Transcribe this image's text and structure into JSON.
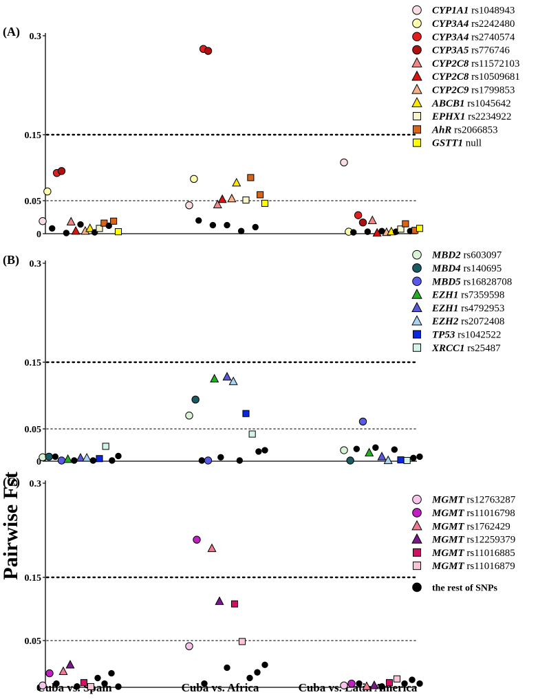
{
  "figure": {
    "y_axis_label": "Pairwise Fst",
    "x_categories": [
      "Cuba vs. Spain",
      "Cuba vs. Africa",
      "Cuba vs. Latin America"
    ]
  },
  "chart_data": [
    {
      "type": "scatter",
      "panel": "(A)",
      "ylim": [
        0,
        0.3
      ],
      "ytick_labels": [
        "0",
        "0.05",
        "0.15",
        "0.3"
      ],
      "reference_lines": [
        0.05,
        0.15
      ],
      "categories": [
        "Cuba vs. Spain",
        "Cuba vs. Africa",
        "Cuba vs. Latin America"
      ],
      "series": [
        {
          "gene": "CYP1A1",
          "snp": "rs1048943",
          "marker": "circle",
          "color": "#f9dde2",
          "points": [
            {
              "x": 0,
              "y": 0.019
            },
            {
              "x": 1,
              "y": 0.043
            },
            {
              "x": 2,
              "y": 0.108
            }
          ]
        },
        {
          "gene": "CYP3A4",
          "snp": "rs2242480",
          "marker": "circle",
          "color": "#ffffb0",
          "points": [
            {
              "x": 0,
              "y": 0.064
            },
            {
              "x": 1,
              "y": 0.083
            },
            {
              "x": 2,
              "y": 0.003
            }
          ]
        },
        {
          "gene": "CYP3A4",
          "snp": "rs2740574",
          "marker": "circle",
          "color": "#e01f1f",
          "points": [
            {
              "x": 0,
              "y": 0.092
            },
            {
              "x": 1,
              "y": 0.28
            },
            {
              "x": 2,
              "y": 0.028
            }
          ]
        },
        {
          "gene": "CYP3A5",
          "snp": "rs776746",
          "marker": "circle",
          "color": "#b01010",
          "points": [
            {
              "x": 0,
              "y": 0.095
            },
            {
              "x": 1,
              "y": 0.277
            },
            {
              "x": 2,
              "y": 0.017
            }
          ]
        },
        {
          "gene": "CYP2C8",
          "snp": "rs11572103",
          "marker": "triangle",
          "color": "#f08888",
          "points": [
            {
              "x": 0,
              "y": 0.018
            },
            {
              "x": 1,
              "y": 0.044
            },
            {
              "x": 2,
              "y": 0.02
            }
          ]
        },
        {
          "gene": "CYP2C8",
          "snp": "rs10509681",
          "marker": "triangle",
          "color": "#e01010",
          "points": [
            {
              "x": 0,
              "y": 0.004
            },
            {
              "x": 1,
              "y": 0.052
            },
            {
              "x": 2,
              "y": 0.001
            }
          ]
        },
        {
          "gene": "CYP2C9",
          "snp": "rs1799853",
          "marker": "triangle",
          "color": "#f6b28c",
          "points": [
            {
              "x": 0,
              "y": 0.004
            },
            {
              "x": 1,
              "y": 0.053
            },
            {
              "x": 2,
              "y": 0.002
            }
          ]
        },
        {
          "gene": "ABCB1",
          "snp": "rs1045642",
          "marker": "triangle",
          "color": "#ffe800",
          "points": [
            {
              "x": 0,
              "y": 0.008
            },
            {
              "x": 1,
              "y": 0.077
            },
            {
              "x": 2,
              "y": 0.003
            }
          ]
        },
        {
          "gene": "EPHX1",
          "snp": "rs2234922",
          "marker": "square",
          "color": "#f8f4cc",
          "points": [
            {
              "x": 0,
              "y": 0.008
            },
            {
              "x": 1,
              "y": 0.051
            },
            {
              "x": 2,
              "y": 0.007
            }
          ]
        },
        {
          "gene": "AhR",
          "snp": "rs2066853",
          "marker": "square",
          "color": "#d86418",
          "points": [
            {
              "x": 0,
              "y": 0.016
            },
            {
              "x": 0,
              "y": 0.019
            },
            {
              "x": 1,
              "y": 0.085
            },
            {
              "x": 1,
              "y": 0.059
            },
            {
              "x": 2,
              "y": 0.015
            },
            {
              "x": 2,
              "y": 0.005
            }
          ]
        },
        {
          "gene": "GSTT1",
          "snp": "null",
          "marker": "square",
          "color": "#ffff00",
          "points": [
            {
              "x": 0,
              "y": 0.003
            },
            {
              "x": 1,
              "y": 0.046
            },
            {
              "x": 2,
              "y": 0.008
            }
          ]
        },
        {
          "gene": "",
          "snp": "the rest of SNPs",
          "marker": "circle",
          "color": "#000000",
          "points": [
            {
              "x": 0,
              "y": 0.008
            },
            {
              "x": 0,
              "y": 0.001
            },
            {
              "x": 0,
              "y": 0.014
            },
            {
              "x": 0,
              "y": 0.002
            },
            {
              "x": 0,
              "y": 0.012
            },
            {
              "x": 1,
              "y": 0.02
            },
            {
              "x": 1,
              "y": 0.013
            },
            {
              "x": 1,
              "y": 0.013
            },
            {
              "x": 1,
              "y": 0.004
            },
            {
              "x": 1,
              "y": 0.01
            },
            {
              "x": 2,
              "y": 0.002
            },
            {
              "x": 2,
              "y": 0.003
            },
            {
              "x": 2,
              "y": 0.004
            },
            {
              "x": 2,
              "y": 0.003
            },
            {
              "x": 2,
              "y": 0.004
            }
          ]
        }
      ]
    },
    {
      "type": "scatter",
      "panel": "(B)",
      "ylim": [
        0,
        0.3
      ],
      "ytick_labels": [
        "0",
        "0.05",
        "0.15",
        "0.3"
      ],
      "reference_lines": [
        0.05,
        0.15
      ],
      "categories": [
        "Cuba vs. Spain",
        "Cuba vs. Africa",
        "Cuba vs. Latin America"
      ],
      "series": [
        {
          "gene": "MBD2",
          "snp": "rs603097",
          "marker": "circle",
          "color": "#d8f4d4",
          "points": [
            {
              "x": 0,
              "y": 0.006
            },
            {
              "x": 1,
              "y": 0.07
            },
            {
              "x": 2,
              "y": 0.017
            }
          ]
        },
        {
          "gene": "MBD4",
          "snp": "rs140695",
          "marker": "circle",
          "color": "#1a5a62",
          "points": [
            {
              "x": 0,
              "y": 0.007
            },
            {
              "x": 1,
              "y": 0.094
            },
            {
              "x": 2,
              "y": 0.001
            }
          ]
        },
        {
          "gene": "MBD5",
          "snp": "rs16828708",
          "marker": "circle",
          "color": "#5a5ae8",
          "points": [
            {
              "x": 0,
              "y": 0.0
            },
            {
              "x": 1,
              "y": 0.0
            },
            {
              "x": 2,
              "y": 0.061
            }
          ]
        },
        {
          "gene": "EZH1",
          "snp": "rs7359598",
          "marker": "triangle",
          "color": "#22b022",
          "points": [
            {
              "x": 0,
              "y": 0.003
            },
            {
              "x": 1,
              "y": 0.125
            },
            {
              "x": 2,
              "y": 0.013
            }
          ]
        },
        {
          "gene": "EZH1",
          "snp": "rs4792953",
          "marker": "triangle",
          "color": "#5858d8",
          "points": [
            {
              "x": 0,
              "y": 0.005
            },
            {
              "x": 1,
              "y": 0.128
            },
            {
              "x": 2,
              "y": 0.007
            }
          ]
        },
        {
          "gene": "EZH2",
          "snp": "rs2072408",
          "marker": "triangle",
          "color": "#aad4f2",
          "points": [
            {
              "x": 0,
              "y": 0.005
            },
            {
              "x": 1,
              "y": 0.121
            },
            {
              "x": 2,
              "y": 0.001
            }
          ]
        },
        {
          "gene": "TP53",
          "snp": "rs1042522",
          "marker": "square",
          "color": "#0a28e0",
          "points": [
            {
              "x": 0,
              "y": 0.004
            },
            {
              "x": 1,
              "y": 0.073
            },
            {
              "x": 2,
              "y": 0.002
            }
          ]
        },
        {
          "gene": "XRCC1",
          "snp": "rs25487",
          "marker": "square",
          "color": "#d2f2ea",
          "points": [
            {
              "x": 0,
              "y": 0.023
            },
            {
              "x": 1,
              "y": 0.042
            },
            {
              "x": 2,
              "y": 0.001
            }
          ]
        },
        {
          "gene": "",
          "snp": "the rest of SNPs",
          "marker": "circle",
          "color": "#000000",
          "points": [
            {
              "x": 0,
              "y": 0.007
            },
            {
              "x": 0,
              "y": 0.001
            },
            {
              "x": 0,
              "y": 0.001
            },
            {
              "x": 0,
              "y": 0.0
            },
            {
              "x": 0,
              "y": 0.008
            },
            {
              "x": 1,
              "y": 0.0
            },
            {
              "x": 1,
              "y": 0.006
            },
            {
              "x": 1,
              "y": 0.0
            },
            {
              "x": 1,
              "y": 0.015
            },
            {
              "x": 1,
              "y": 0.017
            },
            {
              "x": 2,
              "y": 0.019
            },
            {
              "x": 2,
              "y": 0.021
            },
            {
              "x": 2,
              "y": 0.018
            },
            {
              "x": 2,
              "y": 0.005
            },
            {
              "x": 2,
              "y": 0.007
            }
          ]
        }
      ]
    },
    {
      "type": "scatter",
      "panel": "(C)",
      "ylim": [
        0,
        0.3
      ],
      "ytick_labels": [
        "0",
        "0.05",
        "0.15",
        "0.3"
      ],
      "reference_lines": [
        0.05,
        0.15
      ],
      "categories": [
        "Cuba vs. Spain",
        "Cuba vs. Africa",
        "Cuba vs. Latin America"
      ],
      "series": [
        {
          "gene": "MGMT",
          "snp": "rs12763287",
          "marker": "circle",
          "color": "#f6c6ea",
          "points": [
            {
              "x": 0,
              "y": 0.002
            },
            {
              "x": 1,
              "y": 0.044
            },
            {
              "x": 2,
              "y": 0.002
            }
          ]
        },
        {
          "gene": "MGMT",
          "snp": "rs11016798",
          "marker": "circle",
          "color": "#c020c0",
          "points": [
            {
              "x": 0,
              "y": 0.015
            },
            {
              "x": 1,
              "y": 0.21
            },
            {
              "x": 2,
              "y": 0.004
            }
          ]
        },
        {
          "gene": "MGMT",
          "snp": "rs1762429",
          "marker": "triangle",
          "color": "#f07890",
          "points": [
            {
              "x": 0,
              "y": 0.017
            },
            {
              "x": 1,
              "y": 0.196
            },
            {
              "x": 2,
              "y": 0.001
            }
          ]
        },
        {
          "gene": "MGMT",
          "snp": "rs12259379",
          "marker": "triangle",
          "color": "#7a1a8a",
          "points": [
            {
              "x": 0,
              "y": 0.024
            },
            {
              "x": 1,
              "y": 0.112
            },
            {
              "x": 2,
              "y": 0.002
            }
          ]
        },
        {
          "gene": "MGMT",
          "snp": "rs11016885",
          "marker": "square",
          "color": "#d01060",
          "points": [
            {
              "x": 0,
              "y": 0.005
            },
            {
              "x": 1,
              "y": 0.108
            },
            {
              "x": 2,
              "y": 0.005
            }
          ]
        },
        {
          "gene": "MGMT",
          "snp": "rs11016879",
          "marker": "square",
          "color": "#f8c4d8",
          "points": [
            {
              "x": 0,
              "y": 0.0
            },
            {
              "x": 1,
              "y": 0.049
            },
            {
              "x": 2,
              "y": 0.009
            }
          ]
        },
        {
          "gene": "",
          "snp": "the rest of SNPs",
          "marker": "circle",
          "color": "#000000",
          "points": [
            {
              "x": 0,
              "y": 0.004
            },
            {
              "x": 0,
              "y": 0.001
            },
            {
              "x": 0,
              "y": 0.01
            },
            {
              "x": 0,
              "y": 0.004
            },
            {
              "x": 0,
              "y": 0.015
            },
            {
              "x": 0,
              "y": 0.0
            },
            {
              "x": 1,
              "y": 0.004
            },
            {
              "x": 1,
              "y": 0.021
            },
            {
              "x": 1,
              "y": 0.01
            },
            {
              "x": 1,
              "y": 0.016
            },
            {
              "x": 1,
              "y": 0.024
            },
            {
              "x": 2,
              "y": 0.004
            },
            {
              "x": 2,
              "y": 0.001
            },
            {
              "x": 2,
              "y": 0.004
            },
            {
              "x": 2,
              "y": 0.008
            },
            {
              "x": 2,
              "y": 0.004
            }
          ]
        }
      ]
    }
  ]
}
